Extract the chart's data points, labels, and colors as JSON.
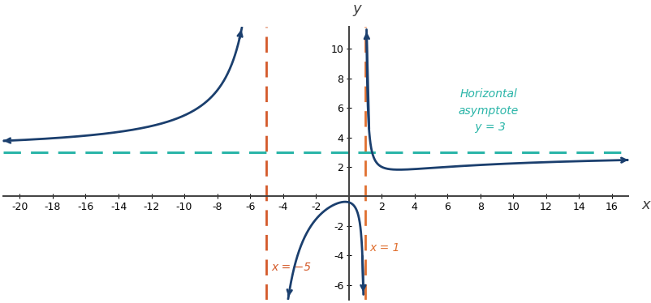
{
  "xlabel": "x",
  "ylabel": "y",
  "xlim": [
    -21,
    17
  ],
  "ylim": [
    -7,
    11.5
  ],
  "xticks": [
    -20,
    -18,
    -16,
    -14,
    -12,
    -10,
    -8,
    -6,
    -4,
    -2,
    2,
    4,
    6,
    8,
    10,
    12,
    14,
    16
  ],
  "yticks": [
    -6,
    -4,
    -2,
    2,
    4,
    6,
    8,
    10
  ],
  "va_x1": -5,
  "va_x2": 1,
  "ha_y": 3,
  "va1_color": "#D45A2A",
  "va2_color": "#E07030",
  "ha_color": "#2AB5A8",
  "curve_color": "#1B3F6E",
  "curve_linewidth": 2.0,
  "va_linewidth": 2.0,
  "ha_linewidth": 2.2,
  "annotation_ha_text": "Horizontal\nasymptote\n y = 3",
  "annotation_ha_color": "#2AB5A8",
  "annotation_va1_text": "x = −5",
  "annotation_va2_text": "x = 1",
  "annotation_va1_color": "#D45A2A",
  "annotation_va2_color": "#E07030",
  "background_color": "#ffffff",
  "axis_color": "#404040",
  "tick_fontsize": 9,
  "label_fontsize": 13
}
